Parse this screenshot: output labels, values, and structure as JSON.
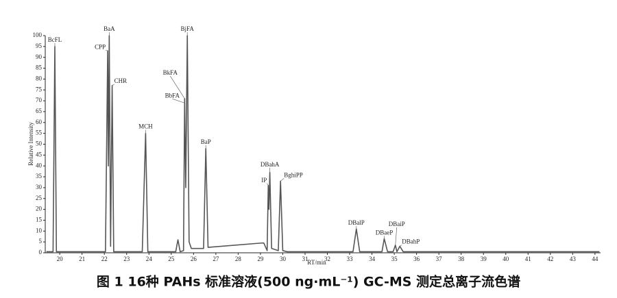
{
  "chart_data": {
    "type": "line",
    "caption": "图 1  16种 PAHs 标准溶液(500 ng·mL⁻¹) GC-MS 测定总离子流色谱",
    "x_label": "RT/min",
    "y_label": "Relative Intensity",
    "xlim": [
      19.35,
      44.25
    ],
    "ylim": [
      0,
      100
    ],
    "xticks": [
      20,
      21,
      22,
      23,
      24,
      25,
      26,
      27,
      28,
      29,
      30,
      31,
      32,
      33,
      34,
      35,
      36,
      37,
      38,
      39,
      40,
      41,
      42,
      43,
      44
    ],
    "yticks": [
      0,
      5,
      10,
      15,
      20,
      25,
      30,
      35,
      40,
      45,
      50,
      55,
      60,
      65,
      70,
      75,
      80,
      85,
      90,
      95,
      100
    ],
    "series": [
      {
        "color": "#555555",
        "x": [
          19.4,
          19.7,
          19.78,
          19.85,
          20.0,
          22.05,
          22.15,
          22.18,
          22.22,
          22.28,
          22.35,
          22.42,
          23.7,
          23.85,
          23.95,
          25.2,
          25.3,
          25.4,
          25.55,
          25.6,
          25.65,
          25.72,
          25.8,
          25.9,
          26.45,
          26.55,
          26.65,
          29.05,
          29.15,
          29.3,
          29.35,
          29.38,
          29.42,
          29.5,
          29.8,
          29.9,
          30.0,
          30.2,
          33.15,
          33.3,
          33.45,
          34.45,
          34.55,
          34.7,
          34.95,
          35.05,
          35.12,
          35.25,
          35.4,
          44.2
        ],
        "values": [
          0.5,
          0.5,
          95,
          0.5,
          0.5,
          0.5,
          93,
          40,
          100,
          3,
          77,
          0.5,
          0.5,
          55,
          0.5,
          0.5,
          6,
          0.5,
          1,
          71,
          30,
          100,
          5,
          2,
          2,
          48,
          2.5,
          4.5,
          4.5,
          1,
          31,
          20,
          37,
          2,
          1,
          33,
          1,
          0.5,
          0.5,
          11,
          0.5,
          0.5,
          6.5,
          0.5,
          0.5,
          3.5,
          0.5,
          3,
          0.5,
          0.5
        ]
      }
    ],
    "annotations": [
      {
        "text": "BcFL",
        "x": 19.78,
        "y": 95
      },
      {
        "text": "BaA",
        "x": 22.22,
        "y": 100
      },
      {
        "text": "CPP",
        "x": 22.15,
        "y": 93
      },
      {
        "text": "CHR",
        "x": 22.35,
        "y": 77
      },
      {
        "text": "MCH",
        "x": 23.85,
        "y": 55
      },
      {
        "text": "BjFA",
        "x": 25.72,
        "y": 100
      },
      {
        "text": "BkFA",
        "x": 25.6,
        "y": 71
      },
      {
        "text": "BbFA",
        "x": 25.6,
        "y": 69
      },
      {
        "text": "BaP",
        "x": 26.55,
        "y": 48
      },
      {
        "text": "IP",
        "x": 29.35,
        "y": 31
      },
      {
        "text": "DBahA",
        "x": 29.42,
        "y": 37
      },
      {
        "text": "BghiPP",
        "x": 29.9,
        "y": 33
      },
      {
        "text": "DBalP",
        "x": 33.3,
        "y": 11
      },
      {
        "text": "DBaeP",
        "x": 34.55,
        "y": 6.5
      },
      {
        "text": "DBaiP",
        "x": 35.05,
        "y": 3.5
      },
      {
        "text": "DBahP",
        "x": 35.25,
        "y": 3
      }
    ]
  }
}
